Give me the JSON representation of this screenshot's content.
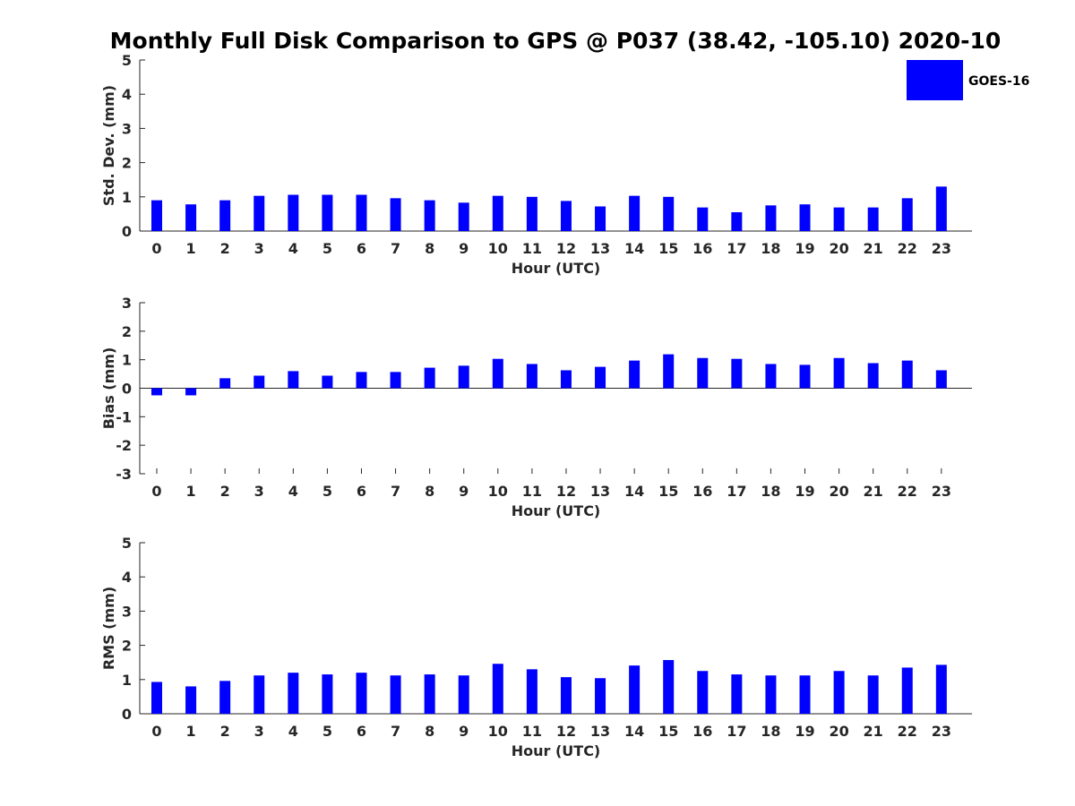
{
  "title": "Monthly Full Disk Comparison to GPS @ P037 (38.42, -105.10) 2020-10",
  "legend": {
    "label": "GOES-16",
    "position": "top-right",
    "color": "#0000ff"
  },
  "colors": {
    "bar": "#0000ff",
    "axis": "#262626"
  },
  "chart_data": [
    {
      "type": "bar",
      "xlabel": "Hour (UTC)",
      "ylabel": "Std. Dev. (mm)",
      "ylim": [
        0,
        5
      ],
      "yticks": [
        0,
        1,
        2,
        3,
        4,
        5
      ],
      "categories": [
        "0",
        "1",
        "2",
        "3",
        "4",
        "5",
        "6",
        "7",
        "8",
        "9",
        "10",
        "11",
        "12",
        "13",
        "14",
        "15",
        "16",
        "17",
        "18",
        "19",
        "20",
        "21",
        "22",
        "23"
      ],
      "series": [
        {
          "name": "GOES-16",
          "values": [
            0.9,
            0.78,
            0.9,
            1.03,
            1.06,
            1.06,
            1.06,
            0.96,
            0.9,
            0.83,
            1.03,
            1.0,
            0.88,
            0.72,
            1.03,
            1.0,
            0.69,
            0.55,
            0.75,
            0.78,
            0.69,
            0.69,
            0.96,
            1.3
          ]
        }
      ],
      "grid": false
    },
    {
      "type": "bar",
      "xlabel": "Hour (UTC)",
      "ylabel": "Bias (mm)",
      "ylim": [
        -3,
        3
      ],
      "yticks": [
        -3,
        -2,
        -1,
        0,
        1,
        2,
        3
      ],
      "categories": [
        "0",
        "1",
        "2",
        "3",
        "4",
        "5",
        "6",
        "7",
        "8",
        "9",
        "10",
        "11",
        "12",
        "13",
        "14",
        "15",
        "16",
        "17",
        "18",
        "19",
        "20",
        "21",
        "22",
        "23"
      ],
      "series": [
        {
          "name": "GOES-16",
          "values": [
            -0.25,
            -0.25,
            0.35,
            0.44,
            0.6,
            0.44,
            0.57,
            0.57,
            0.72,
            0.79,
            1.03,
            0.85,
            0.63,
            0.75,
            0.97,
            1.19,
            1.06,
            1.03,
            0.85,
            0.82,
            1.06,
            0.88,
            0.97,
            0.63
          ]
        }
      ],
      "grid": false
    },
    {
      "type": "bar",
      "xlabel": "Hour (UTC)",
      "ylabel": "RMS (mm)",
      "ylim": [
        0,
        5
      ],
      "yticks": [
        0,
        1,
        2,
        3,
        4,
        5
      ],
      "categories": [
        "0",
        "1",
        "2",
        "3",
        "4",
        "5",
        "6",
        "7",
        "8",
        "9",
        "10",
        "11",
        "12",
        "13",
        "14",
        "15",
        "16",
        "17",
        "18",
        "19",
        "20",
        "21",
        "22",
        "23"
      ],
      "series": [
        {
          "name": "GOES-16",
          "values": [
            0.93,
            0.8,
            0.96,
            1.12,
            1.2,
            1.15,
            1.2,
            1.12,
            1.15,
            1.12,
            1.46,
            1.3,
            1.07,
            1.04,
            1.41,
            1.57,
            1.25,
            1.15,
            1.12,
            1.12,
            1.25,
            1.12,
            1.35,
            1.43
          ]
        }
      ],
      "grid": false
    }
  ]
}
